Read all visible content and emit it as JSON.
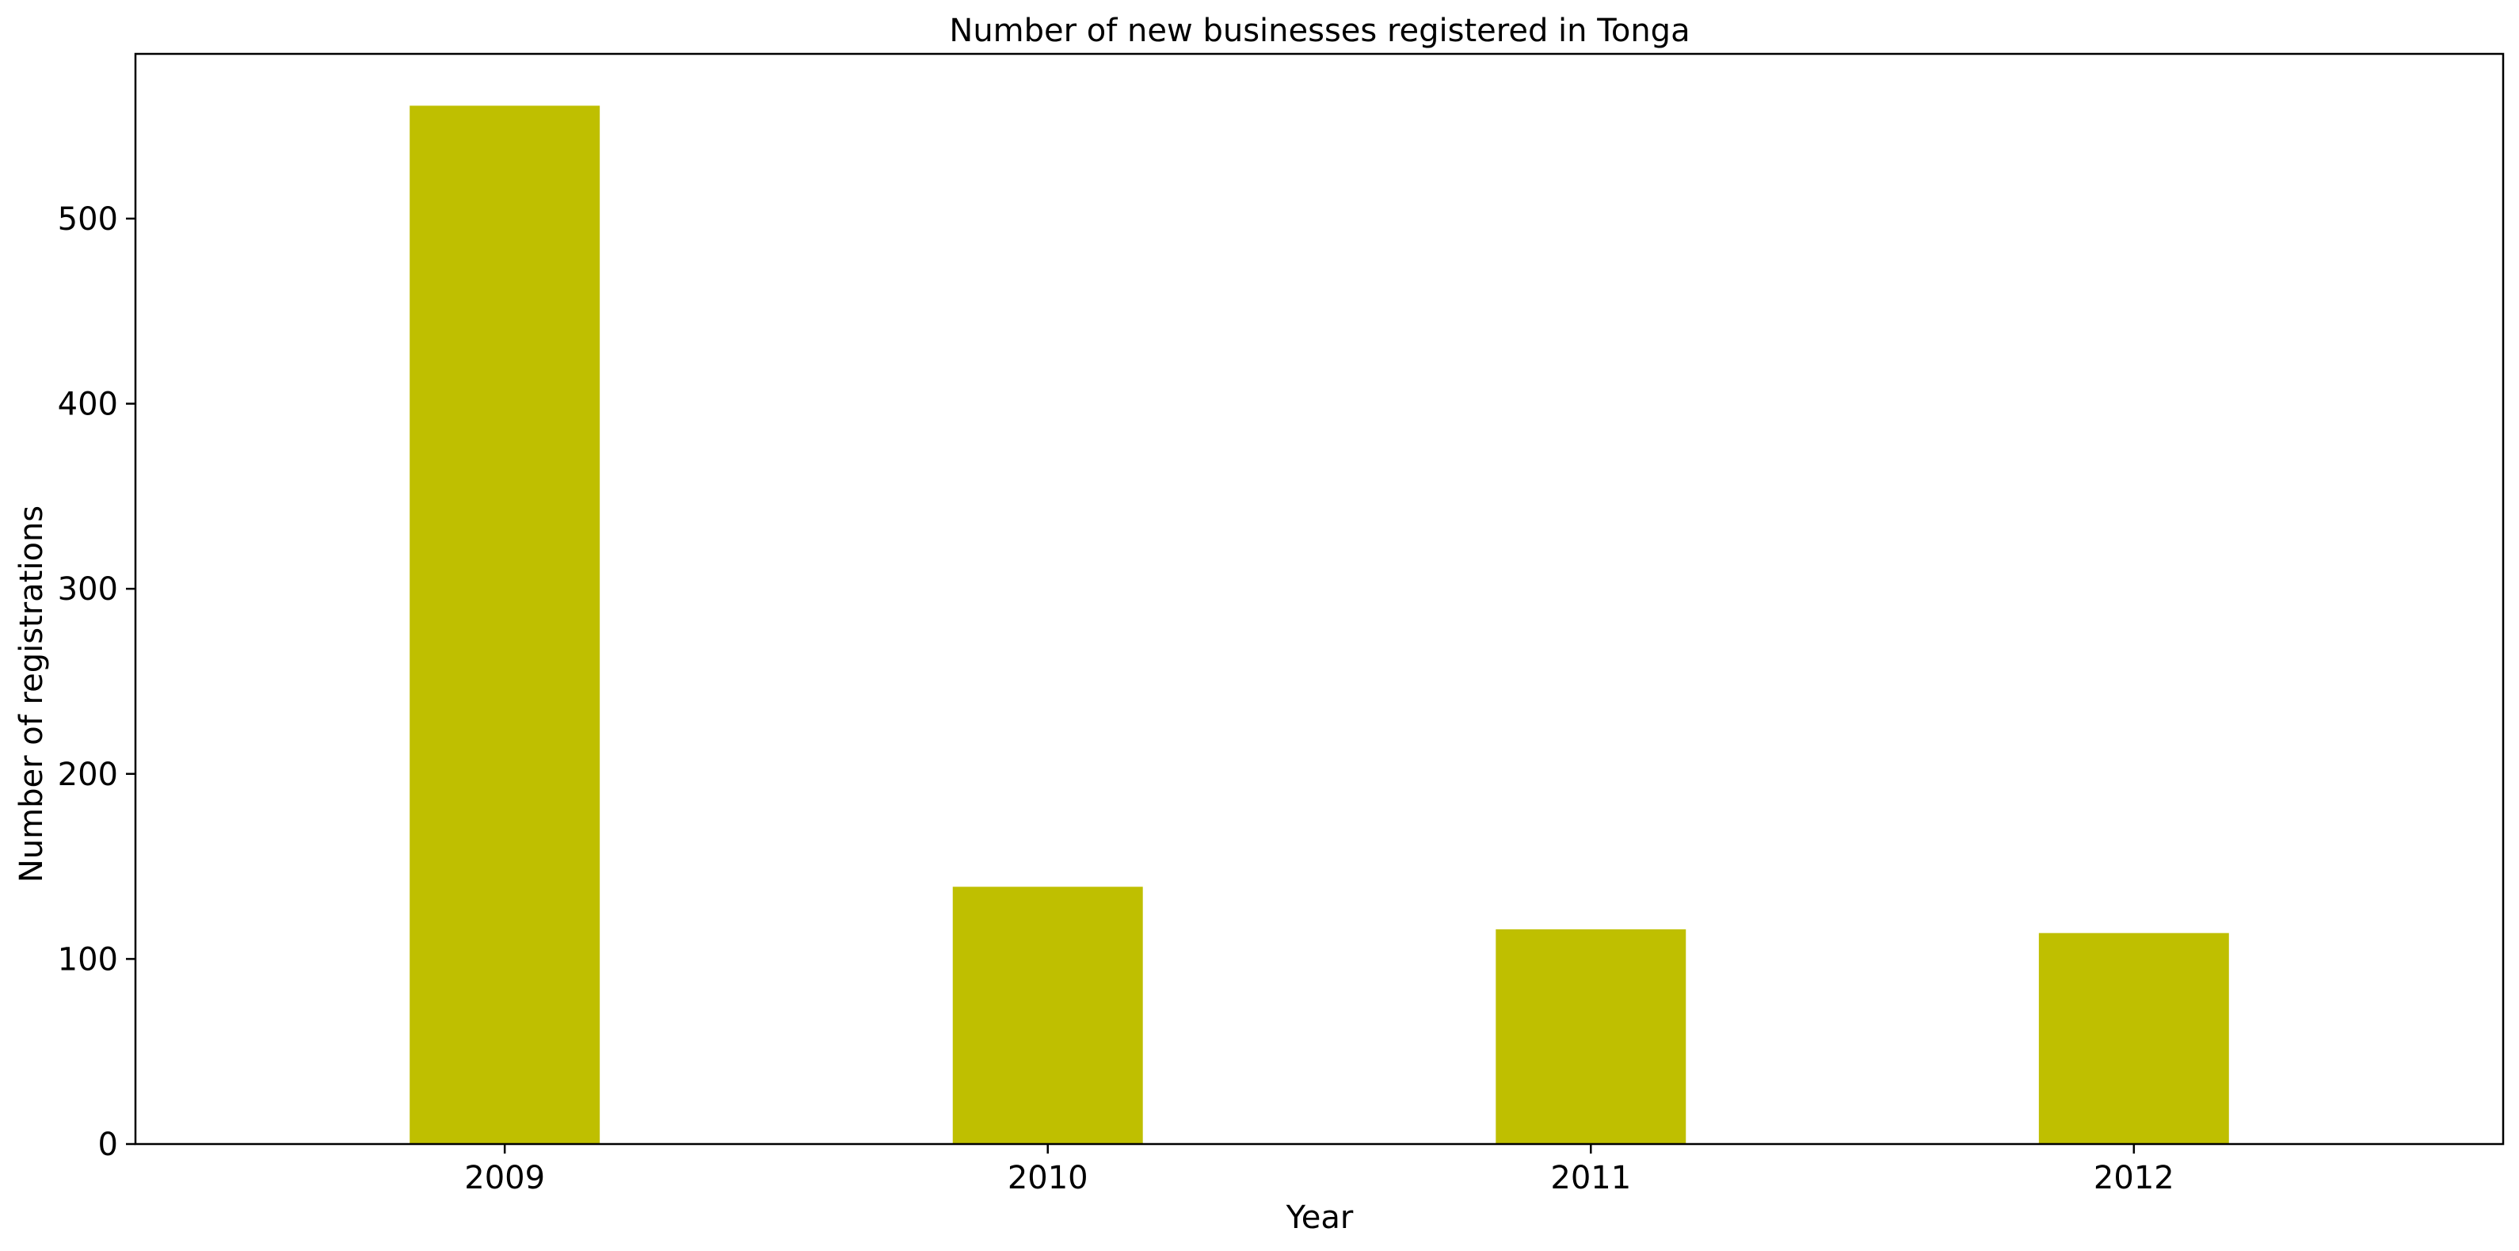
{
  "chart_data": {
    "type": "bar",
    "title": "Number of new businesses registered in Tonga",
    "xlabel": "Year",
    "ylabel": "Number of registrations",
    "categories": [
      "2009",
      "2010",
      "2011",
      "2012"
    ],
    "values": [
      561,
      139,
      116,
      114
    ],
    "ylim": [
      0,
      589
    ],
    "yticks": [
      0,
      100,
      200,
      300,
      400,
      500
    ],
    "bar_color": "#bfbf00",
    "grid": false,
    "legend": "none"
  }
}
